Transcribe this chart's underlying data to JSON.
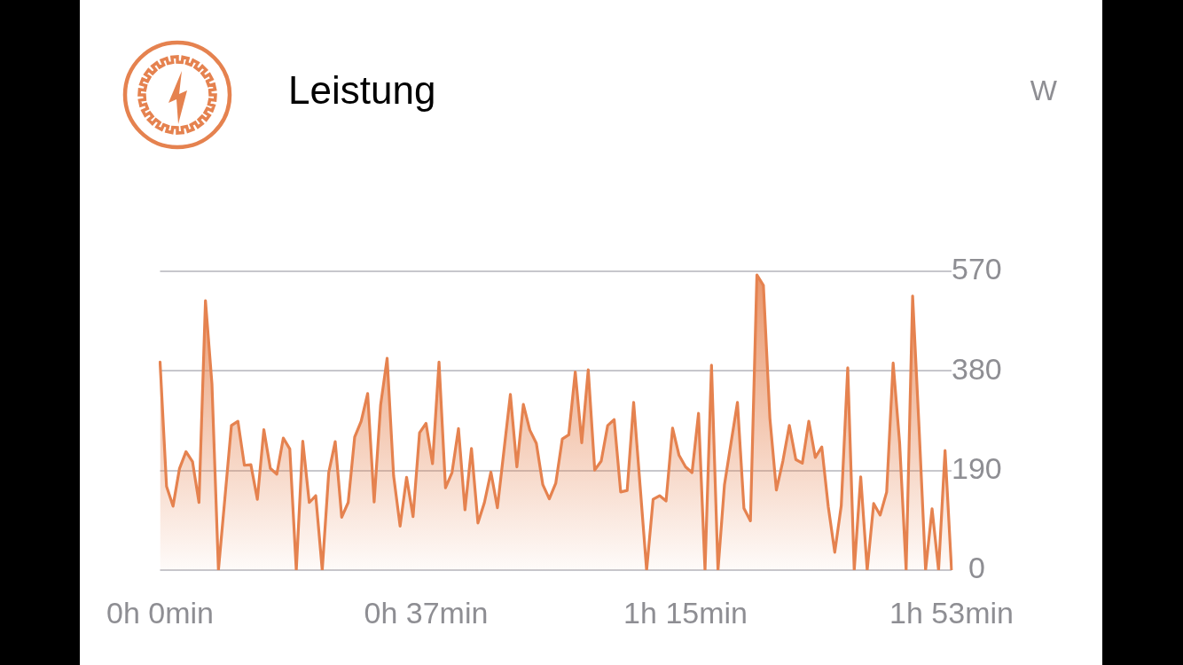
{
  "chart_data": {
    "type": "area",
    "title": "Leistung",
    "annotations": [
      "W"
    ],
    "color": "#e5824f",
    "categories": [
      "0h 0min",
      null,
      null,
      null,
      null,
      null,
      null,
      null,
      null,
      null,
      null,
      null,
      null,
      null,
      null,
      null,
      null,
      null,
      null,
      null,
      null,
      null,
      null,
      null,
      null,
      null,
      null,
      null,
      null,
      null,
      null,
      null,
      null,
      null,
      null,
      null,
      null,
      null,
      null,
      null,
      null,
      "0h 37min",
      null,
      null,
      null,
      null,
      null,
      null,
      null,
      null,
      null,
      null,
      null,
      null,
      null,
      null,
      null,
      null,
      null,
      null,
      null,
      null,
      null,
      null,
      null,
      null,
      null,
      null,
      null,
      null,
      null,
      null,
      null,
      null,
      null,
      null,
      null,
      null,
      null,
      null,
      null,
      "1h 15min",
      null,
      null,
      null,
      null,
      null,
      null,
      null,
      null,
      null,
      null,
      null,
      null,
      null,
      null,
      null,
      null,
      null,
      null,
      null,
      null,
      null,
      null,
      null,
      null,
      null,
      null,
      null,
      null,
      null,
      null,
      null,
      null,
      null,
      null,
      null,
      null,
      null,
      null,
      null,
      null,
      "1h 53min"
    ],
    "values": [
      397,
      160,
      122,
      194,
      226,
      207,
      129,
      514,
      355,
      0,
      138,
      276,
      284,
      200,
      201,
      135,
      268,
      194,
      183,
      252,
      231,
      0,
      246,
      129,
      142,
      0,
      186,
      245,
      101,
      129,
      254,
      284,
      337,
      130,
      315,
      404,
      180,
      84,
      177,
      102,
      262,
      280,
      203,
      397,
      157,
      186,
      270,
      115,
      232,
      90,
      129,
      187,
      119,
      227,
      335,
      197,
      316,
      267,
      242,
      163,
      136,
      166,
      250,
      258,
      378,
      243,
      382,
      191,
      208,
      276,
      287,
      149,
      152,
      320,
      160,
      0,
      135,
      142,
      132,
      271,
      219,
      197,
      186,
      299,
      0,
      391,
      0,
      163,
      242,
      320,
      118,
      94,
      563,
      543,
      290,
      153,
      208,
      276,
      211,
      204,
      284,
      215,
      235,
      121,
      34,
      123,
      386,
      0,
      178,
      0,
      127,
      105,
      149,
      395,
      242,
      0,
      523,
      270,
      0,
      117,
      0,
      228,
      0
    ],
    "ylim": [
      0,
      570
    ],
    "yticks": [
      0,
      190,
      380,
      570
    ],
    "grid": "y"
  }
}
